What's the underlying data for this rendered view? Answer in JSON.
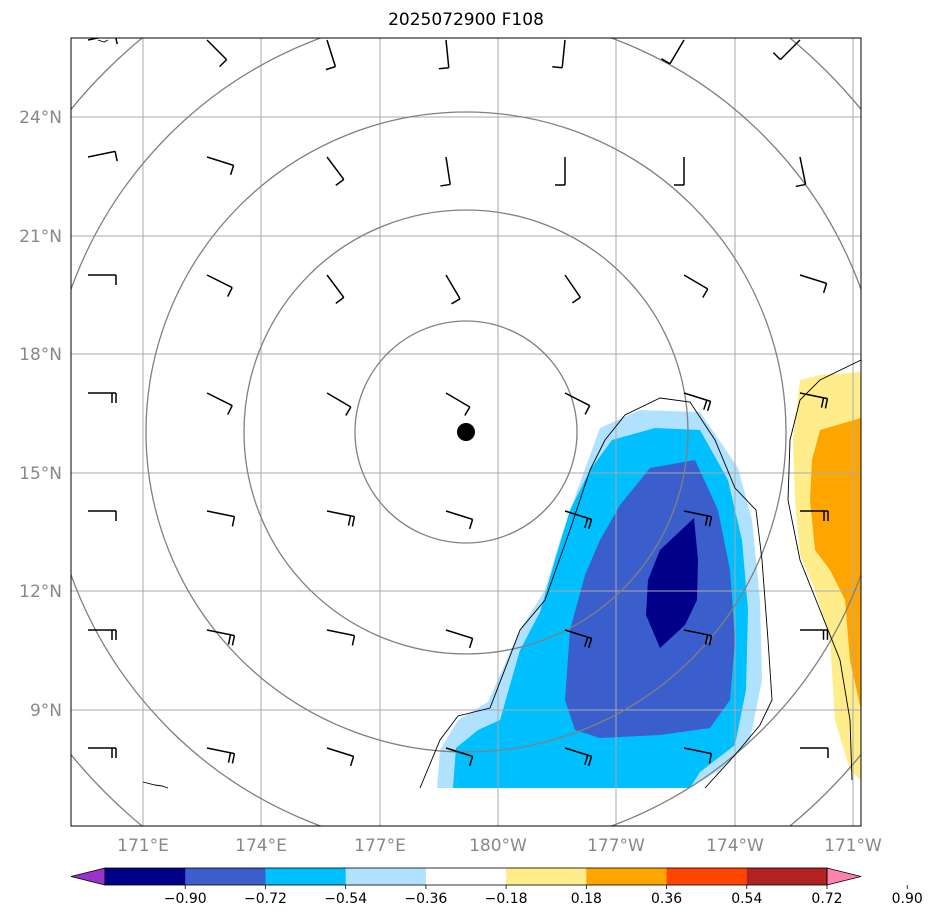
{
  "title": "2025072900 F108",
  "lat_labels": [
    "24°N",
    "21°N",
    "18°N",
    "15°N",
    "12°N",
    "9°N"
  ],
  "lon_labels": [
    "171°E",
    "174°E",
    "177°E",
    "180°W",
    "177°W",
    "174°W",
    "171°W"
  ],
  "colorbar": {
    "colors": [
      "#9933cc",
      "#000088",
      "#3a5fcd",
      "#00bfff",
      "#b0e2ff",
      "#ffffff",
      "#ffec8b",
      "#ffa500",
      "#ff4500",
      "#b22222",
      "#ff82ab"
    ],
    "labels": [
      "−0.90",
      "−0.72",
      "−0.54",
      "−0.36",
      "−0.18",
      "0.18",
      "0.36",
      "0.54",
      "0.72",
      "0.90"
    ]
  },
  "colors": {
    "contour_line": "#808080",
    "grid_line": "#aaaaaa",
    "wind_barb": "#000000",
    "coastline": "#000000",
    "center_marker": "#000000"
  },
  "icons": {
    "center": "storm-center-dot-icon",
    "wind": "wind-barb-icon"
  }
}
